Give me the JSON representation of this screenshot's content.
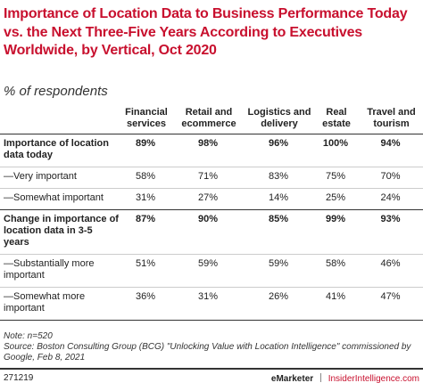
{
  "header": {
    "title": "Importance of Location Data to Business Performance Today vs. the Next Three-Five Years According to Executives Worldwide, by Vertical, Oct 2020",
    "subtitle": "% of respondents"
  },
  "table": {
    "columns": [
      "Financial services",
      "Retail and ecommerce",
      "Logistics and delivery",
      "Real estate",
      "Travel and tourism"
    ],
    "rows": [
      {
        "label": "Importance of location data today",
        "values": [
          "89%",
          "98%",
          "96%",
          "100%",
          "94%"
        ],
        "bold": true
      },
      {
        "label": "—Very important",
        "values": [
          "58%",
          "71%",
          "83%",
          "75%",
          "70%"
        ],
        "bold": false
      },
      {
        "label": "—Somewhat important",
        "values": [
          "31%",
          "27%",
          "14%",
          "25%",
          "24%"
        ],
        "bold": false
      },
      {
        "label": "Change in importance of location data in 3-5 years",
        "values": [
          "87%",
          "90%",
          "85%",
          "99%",
          "93%"
        ],
        "bold": true
      },
      {
        "label": "—Substantially more important",
        "values": [
          "51%",
          "59%",
          "59%",
          "58%",
          "46%"
        ],
        "bold": false
      },
      {
        "label": "—Somewhat more important",
        "values": [
          "36%",
          "31%",
          "26%",
          "41%",
          "47%"
        ],
        "bold": false
      }
    ]
  },
  "footer": {
    "note": "Note: n=520",
    "source": "Source: Boston Consulting Group (BCG) \"Unlocking Value with Location Intelligence\" commissioned by Google, Feb 8, 2021",
    "id": "271219",
    "brand": "eMarketer",
    "site": "InsiderIntelligence.com"
  }
}
